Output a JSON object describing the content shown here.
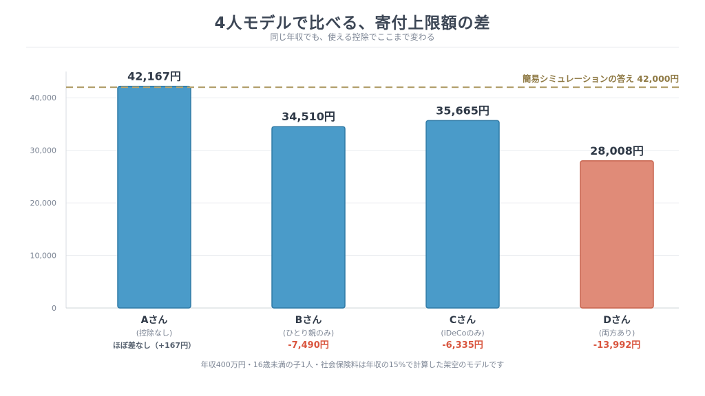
{
  "title": "4人モデルで比べる、寄付上限額の差",
  "subtitle": "同じ年収でも、使える控除でここまで変わる",
  "footnote": "年収400万円・16歳未満の子1人・社会保険料は年収の15%で計算した架空のモデルです",
  "colors": {
    "bar_default": "#4a9bc9",
    "bar_default_stroke": "#2f7aa6",
    "bar_highlight": "#e08b78",
    "bar_highlight_stroke": "#c7644f",
    "reference_line": "#b5a472",
    "reference_text": "#8f7a45",
    "diff_negative": "#d9553e",
    "diff_neutral": "#55606e",
    "grid": "#eceef1",
    "axis_text": "#7c8594"
  },
  "chart_data": {
    "type": "bar",
    "categories": [
      "Aさん",
      "Bさん",
      "Cさん",
      "Dさん"
    ],
    "category_notes": [
      "(控除なし)",
      "(ひとり親のみ)",
      "(iDeCoのみ)",
      "(両方あり)"
    ],
    "values": [
      42167,
      34510,
      35665,
      28008
    ],
    "value_labels": [
      "42,167円",
      "34,510円",
      "35,665円",
      "28,008円"
    ],
    "diff_labels": [
      "ほぼ差なし（+167円）",
      "-7,490円",
      "-6,335円",
      "-13,992円"
    ],
    "diff_kinds": [
      "neutral",
      "negative",
      "negative",
      "negative"
    ],
    "highlight": [
      false,
      false,
      false,
      true
    ],
    "reference": {
      "value": 42000,
      "label": "簡易シミュレーションの答え 42,000円"
    },
    "ylim": [
      0,
      45000
    ],
    "yticks": [
      0,
      10000,
      20000,
      30000,
      40000
    ],
    "ytick_labels": [
      "0",
      "10,000",
      "20,000",
      "30,000",
      "40,000"
    ],
    "xlabel": "",
    "ylabel": "",
    "grid": true,
    "legend": "none"
  }
}
